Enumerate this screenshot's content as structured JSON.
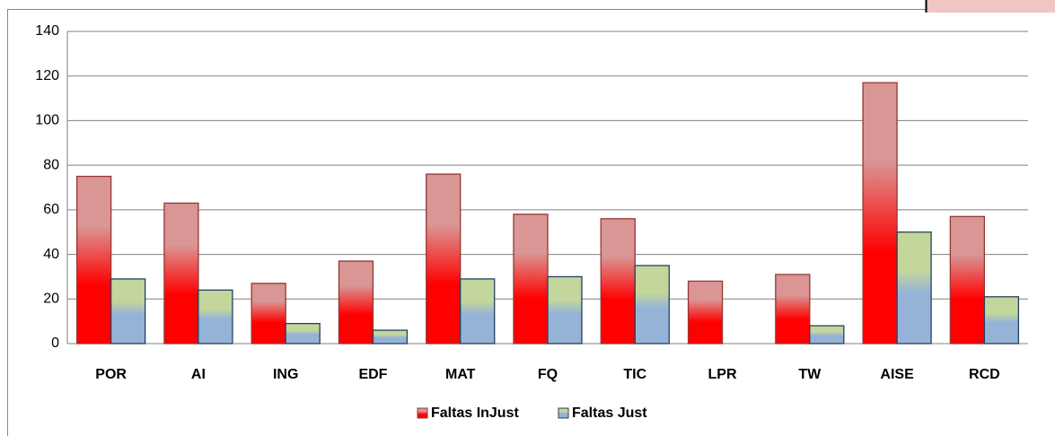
{
  "chart_data": {
    "type": "bar",
    "categories": [
      "POR",
      "AI",
      "ING",
      "EDF",
      "MAT",
      "FQ",
      "TIC",
      "LPR",
      "TW",
      "AISE",
      "RCD"
    ],
    "series": [
      {
        "name": "Faltas InJust",
        "color": "#ff0000",
        "values": [
          75,
          63,
          27,
          37,
          76,
          58,
          56,
          28,
          31,
          117,
          57
        ]
      },
      {
        "name": "Faltas Just",
        "color": "#95b3d7",
        "values": [
          29,
          24,
          9,
          6,
          29,
          30,
          35,
          0,
          8,
          50,
          21
        ]
      }
    ],
    "ylim": [
      0,
      140
    ],
    "yticks": [
      0,
      20,
      40,
      60,
      80,
      100,
      120,
      140
    ],
    "grid": true,
    "legend": "bottom"
  }
}
